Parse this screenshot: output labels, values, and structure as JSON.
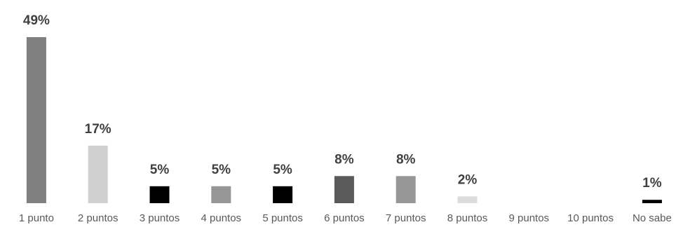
{
  "chart_data": {
    "type": "bar",
    "title": "",
    "xlabel": "",
    "ylabel": "",
    "ylim": [
      0,
      50
    ],
    "grid": false,
    "legend": "none",
    "categories": [
      "1 punto",
      "2 puntos",
      "3 puntos",
      "4 puntos",
      "5 puntos",
      "6 puntos",
      "7 puntos",
      "8 puntos",
      "9 puntos",
      "10 puntos",
      "No sabe"
    ],
    "values": [
      49,
      17,
      5,
      5,
      5,
      8,
      8,
      2,
      0,
      0,
      1
    ],
    "data_labels": [
      "49%",
      "17%",
      "5%",
      "5%",
      "5%",
      "8%",
      "8%",
      "2%",
      "",
      "",
      "1%"
    ],
    "colors": [
      "#808080",
      "#d0d0d0",
      "#000000",
      "#969696",
      "#000000",
      "#5a5a5a",
      "#969696",
      "#dcdcdc",
      "#bfbfbf",
      "#bfbfbf",
      "#000000"
    ]
  }
}
